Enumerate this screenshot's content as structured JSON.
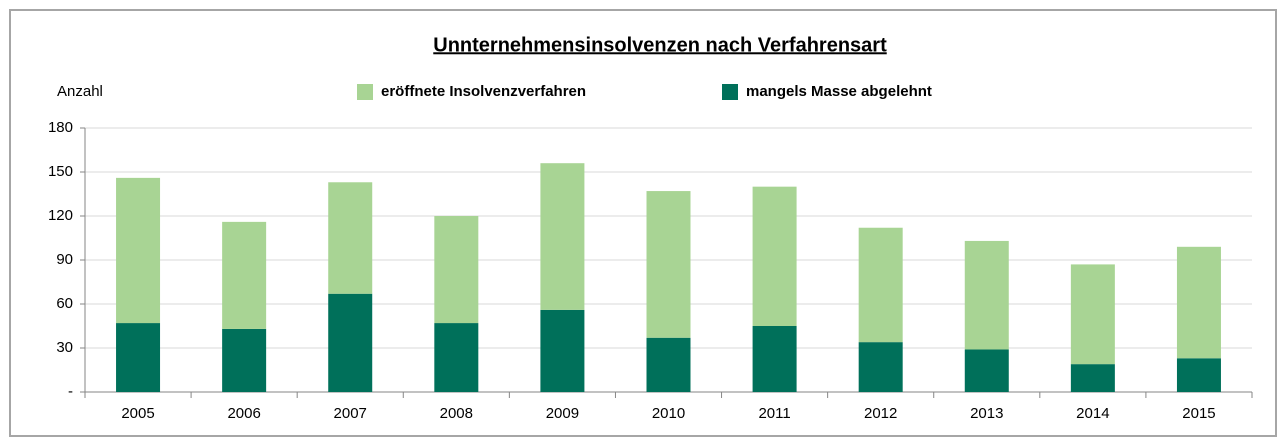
{
  "chart_data": {
    "type": "bar",
    "stacked": true,
    "title": "Unnternehmensinsolvenzen nach Verfahrensart",
    "y_label": "Anzahl",
    "categories": [
      "2005",
      "2006",
      "2007",
      "2008",
      "2009",
      "2010",
      "2011",
      "2012",
      "2013",
      "2014",
      "2015"
    ],
    "series": [
      {
        "name": "mangels Masse abgelehnt",
        "color": "#00705a",
        "values": [
          47,
          43,
          67,
          47,
          56,
          37,
          45,
          34,
          29,
          19,
          23
        ]
      },
      {
        "name": "eröffnete Insolvenzverfahren",
        "color": "#a8d494",
        "values": [
          99,
          73,
          76,
          73,
          100,
          100,
          95,
          78,
          74,
          68,
          76
        ]
      }
    ],
    "ylim": [
      0,
      180
    ],
    "yticks": [
      {
        "value": 0,
        "label": "-"
      },
      30,
      60,
      90,
      120,
      150,
      180
    ],
    "grid": true
  }
}
